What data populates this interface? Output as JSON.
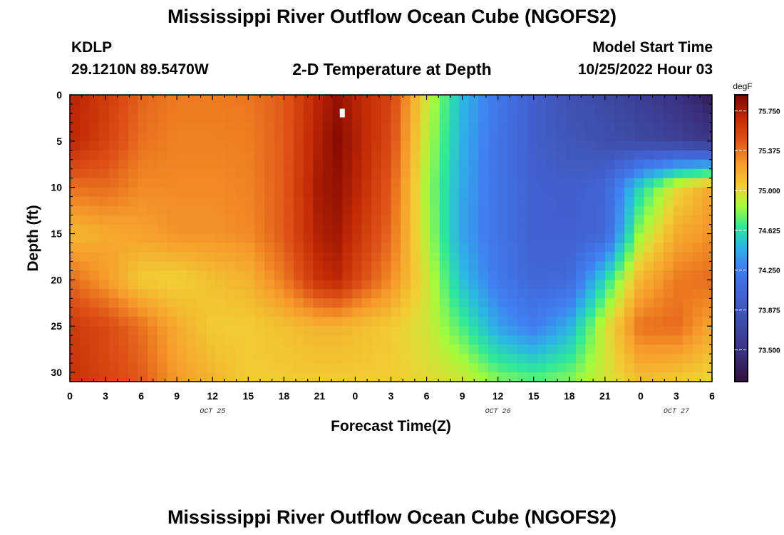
{
  "header": {
    "title": "Mississippi River Outflow Ocean Cube (NGOFS2)",
    "station_id": "KDLP",
    "station_coords": "29.1210N  89.5470W",
    "plot_subtitle": "2-D Temperature at Depth",
    "model_start_label": "Model Start Time",
    "model_start_value": "10/25/2022 Hour 03"
  },
  "footer": {
    "title": "Mississippi River Outflow Ocean Cube (NGOFS2)"
  },
  "chart_data": {
    "type": "heatmap",
    "title": "2-D Temperature at Depth",
    "xlabel": "Forecast Time(Z)",
    "ylabel": "Depth (ft)",
    "x_ticks": [
      "0",
      "3",
      "6",
      "9",
      "12",
      "15",
      "18",
      "21",
      "0",
      "3",
      "6",
      "9",
      "12",
      "15",
      "18",
      "21",
      "0",
      "3",
      "6"
    ],
    "x_date_labels": [
      {
        "label": "OCT 25",
        "at_tick": 4
      },
      {
        "label": "OCT 26",
        "at_tick": 12
      },
      {
        "label": "OCT 27",
        "at_tick": 17
      }
    ],
    "x_range_hours": [
      0,
      54
    ],
    "y_ticks": [
      "0",
      "5",
      "10",
      "15",
      "20",
      "25",
      "30"
    ],
    "y_range_ft": [
      0,
      31
    ],
    "y_inverted": true,
    "colorbar": {
      "unit": "degF",
      "ticks": [
        "75.750",
        "75.375",
        "75.000",
        "74.625",
        "74.250",
        "73.875",
        "73.500"
      ],
      "range": [
        73.2,
        75.9
      ]
    },
    "temperature_degF": {
      "hours": [
        0,
        3,
        6,
        9,
        12,
        15,
        18,
        21,
        22.5,
        24,
        27,
        30,
        33,
        36,
        39,
        42,
        45,
        48,
        51,
        54
      ],
      "depths_ft": [
        0,
        5,
        10,
        15,
        20,
        25,
        31
      ],
      "values": [
        [
          75.72,
          75.6,
          75.42,
          75.35,
          75.35,
          75.36,
          75.45,
          75.72,
          75.82,
          75.72,
          75.55,
          74.95,
          74.48,
          74.2,
          73.98,
          73.82,
          73.72,
          73.62,
          73.5,
          73.3
        ],
        [
          75.7,
          75.56,
          75.38,
          75.33,
          75.33,
          75.34,
          75.45,
          75.75,
          75.85,
          75.75,
          75.52,
          74.9,
          74.45,
          74.18,
          73.98,
          73.88,
          73.8,
          73.72,
          73.65,
          73.55
        ],
        [
          75.38,
          75.4,
          75.3,
          75.3,
          75.3,
          75.32,
          75.45,
          75.78,
          75.82,
          75.72,
          75.45,
          74.85,
          74.42,
          74.18,
          74.0,
          73.98,
          74.05,
          74.6,
          75.0,
          75.2
        ],
        [
          75.12,
          75.18,
          75.22,
          75.28,
          75.28,
          75.3,
          75.45,
          75.75,
          75.78,
          75.65,
          75.4,
          74.88,
          74.4,
          74.18,
          74.0,
          74.0,
          74.05,
          74.85,
          75.18,
          75.28
        ],
        [
          75.4,
          75.25,
          75.05,
          75.02,
          75.1,
          75.15,
          75.35,
          75.65,
          75.7,
          75.55,
          75.3,
          74.95,
          74.5,
          74.22,
          74.05,
          74.08,
          74.6,
          75.15,
          75.35,
          75.4
        ],
        [
          75.6,
          75.52,
          75.38,
          75.18,
          75.05,
          75.05,
          75.1,
          75.15,
          75.15,
          75.12,
          75.05,
          74.95,
          74.7,
          74.4,
          74.25,
          74.45,
          74.95,
          75.38,
          75.4,
          75.2
        ],
        [
          75.65,
          75.55,
          75.45,
          75.25,
          75.15,
          75.05,
          75.05,
          75.05,
          75.05,
          75.05,
          75.05,
          75.0,
          74.95,
          74.8,
          74.75,
          74.8,
          74.95,
          75.1,
          75.05,
          75.0
        ]
      ]
    }
  }
}
